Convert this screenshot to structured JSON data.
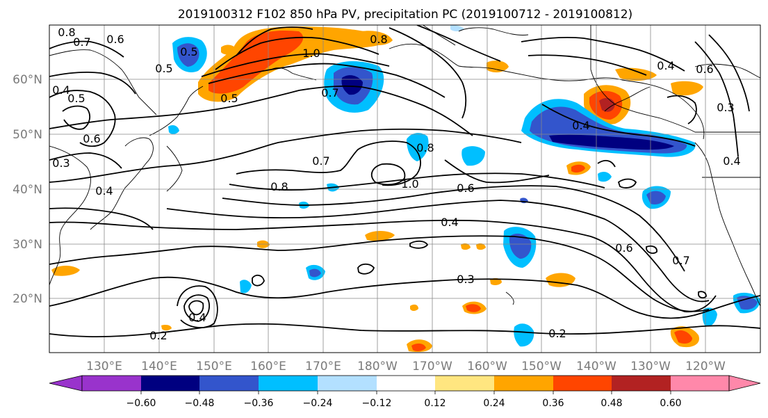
{
  "title": "2019100312 F102 850 hPa PV, precipitation PC (2019100712 - 2019100812)",
  "lon_labels": [
    "130°E",
    "140°E",
    "150°E",
    "160°E",
    "170°E",
    "180°W",
    "170°W",
    "160°W",
    "150°W",
    "140°W",
    "130°W",
    "120°W"
  ],
  "lat_labels": [
    "20°N",
    "30°N",
    "40°N",
    "50°N",
    "60°N"
  ],
  "colorbar": {
    "tick_labels": [
      "−0.60",
      "−0.48",
      "−0.36",
      "−0.24",
      "−0.12",
      "0.12",
      "0.24",
      "0.36",
      "0.48",
      "0.60"
    ],
    "colors": [
      "#9933cc",
      "#000080",
      "#3355cc",
      "#00bfff",
      "#b3e0ff",
      "#ffffff",
      "#ffe680",
      "#ffa500",
      "#ff4500",
      "#b22222",
      "#ff88aa"
    ]
  },
  "contour_labels": [
    "0.8",
    "0.7",
    "0.6",
    "0.5",
    "0.5",
    "0.4",
    "0.5",
    "0.6",
    "0.3",
    "0.4",
    "1.0",
    "0.8",
    "0.5",
    "0.7",
    "0.7",
    "0.8",
    "1.0",
    "0.8",
    "0.6",
    "0.4",
    "0.3",
    "0.2",
    "0.4",
    "0.2",
    "0.4",
    "0.4",
    "0.6",
    "0.7",
    "0.4",
    "0.3",
    "0.6"
  ]
}
